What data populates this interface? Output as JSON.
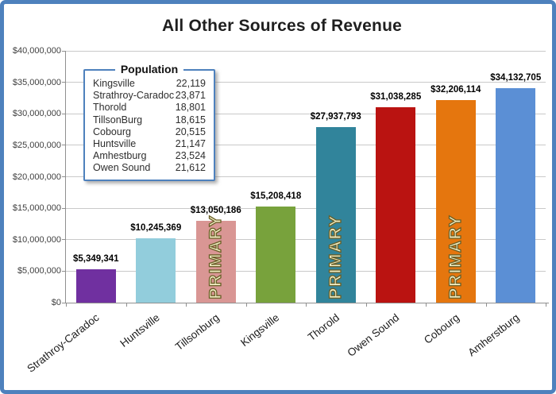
{
  "frame": {
    "border_color": "#4E81BD",
    "background": "#FFFFFF"
  },
  "title": "All Other Sources of Revenue",
  "legend": {
    "title": "Population",
    "rows": [
      {
        "name": "Kingsville",
        "value": "22,119"
      },
      {
        "name": "Strathroy-Caradoc",
        "value": "23,871"
      },
      {
        "name": "Thorold",
        "value": "18,801"
      },
      {
        "name": "TillsonBurg",
        "value": "18,615"
      },
      {
        "name": "Cobourg",
        "value": "20,515"
      },
      {
        "name": "Huntsville",
        "value": "21,147"
      },
      {
        "name": "Amhestburg",
        "value": "23,524"
      },
      {
        "name": "Owen Sound",
        "value": "21,612"
      }
    ]
  },
  "chart_data": {
    "type": "bar",
    "title": "All Other Sources of Revenue",
    "categories": [
      "Strathroy-Caradoc",
      "Huntsville",
      "Tillsonburg",
      "Kingsville",
      "Thorold",
      "Owen Sound",
      "Cobourg",
      "Amherstburg"
    ],
    "values": [
      5349341,
      10245369,
      13050186,
      15208418,
      27937793,
      31038285,
      32206114,
      34132705
    ],
    "value_labels": [
      "$5,349,341",
      "$10,245,369",
      "$13,050,186",
      "$15,208,418",
      "$27,937,793",
      "$31,038,285",
      "$32,206,114",
      "$34,132,705"
    ],
    "bar_colors": [
      "#7030A0",
      "#92CDDC",
      "#D99694",
      "#78A23C",
      "#31849B",
      "#BA1311",
      "#E5760E",
      "#5B8FD5"
    ],
    "overlay_text": [
      "",
      "",
      "PRIMARY",
      "",
      "PRIMARY",
      "",
      "PRIMARY",
      ""
    ],
    "overlay_text_color": "#F2EFC5",
    "overlay_stroke_color": "#6A5F28",
    "xlabel": "",
    "ylabel": "",
    "ylim": [
      0,
      40000000
    ],
    "ytick_interval": 5000000,
    "ytick_labels": [
      "$0",
      "$5,000,000",
      "$10,000,000",
      "$15,000,000",
      "$20,000,000",
      "$25,000,000",
      "$30,000,000",
      "$35,000,000",
      "$40,000,000"
    ],
    "grid": true,
    "legend_position": "upper-left-inside"
  }
}
